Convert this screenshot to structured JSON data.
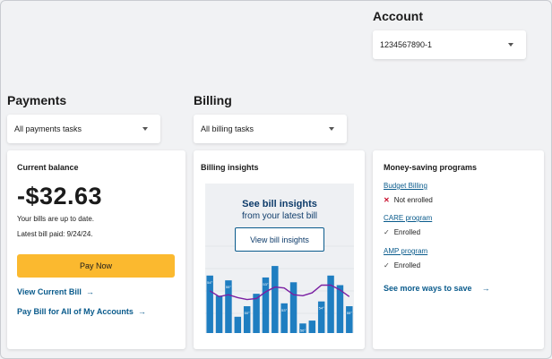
{
  "account": {
    "title": "Account",
    "selected": "1234567890-1"
  },
  "payments": {
    "title": "Payments",
    "selected": "All payments tasks"
  },
  "billing": {
    "title": "Billing",
    "selected": "All billing tasks"
  },
  "balance_card": {
    "title": "Current balance",
    "amount": "-$32.63",
    "status": "Your bills are up to date.",
    "last_paid": "Latest bill paid: 9/24/24.",
    "pay_button": "Pay Now",
    "link_view": "View Current Bill",
    "link_pay_all": "Pay Bill for All of My Accounts"
  },
  "insights_card": {
    "title": "Billing insights",
    "headline": "See bill insights",
    "subheadline": "from your latest bill",
    "button": "View bill insights",
    "bars": [
      0.6,
      0.39,
      0.55,
      0.17,
      0.28,
      0.41,
      0.58,
      0.7,
      0.31,
      0.53,
      0.1,
      0.13,
      0.33,
      0.6,
      0.5,
      0.28
    ],
    "bar_labels": [
      "54°",
      "",
      "55°",
      "",
      "50°",
      "",
      "53°",
      "",
      "53°",
      "",
      "56°",
      "",
      "54°",
      "",
      "",
      "55°"
    ],
    "line": [
      0.44,
      0.38,
      0.4,
      0.37,
      0.35,
      0.36,
      0.43,
      0.48,
      0.47,
      0.4,
      0.39,
      0.42,
      0.5,
      0.5,
      0.45,
      0.38
    ],
    "bar_color": "#1f7ec1",
    "line_color": "#7a1fa2"
  },
  "programs_card": {
    "title": "Money-saving programs",
    "items": [
      {
        "name": "Budget Billing",
        "status": "Not enrolled",
        "icon": "x-icon"
      },
      {
        "name": "CARE program",
        "status": "Enrolled",
        "icon": "check-icon"
      },
      {
        "name": "AMP program",
        "status": "Enrolled",
        "icon": "check-icon"
      }
    ],
    "more_link": "See more ways to save"
  }
}
